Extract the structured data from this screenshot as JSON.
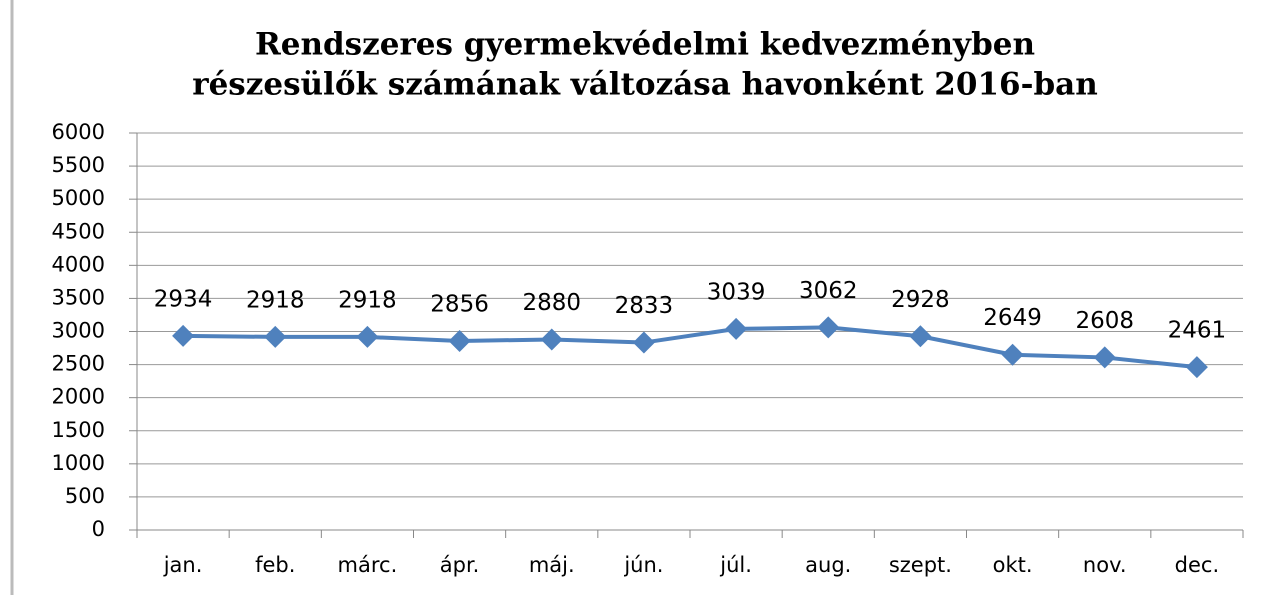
{
  "chart_data": {
    "type": "line",
    "title": [
      "Rendszeres gyermekvédelmi kedvezményben",
      "részesülők számának változása havonként 2016-ban"
    ],
    "categories": [
      "jan.",
      "feb.",
      "márc.",
      "ápr.",
      "máj.",
      "jún.",
      "júl.",
      "aug.",
      "szept.",
      "okt.",
      "nov.",
      "dec."
    ],
    "series": [
      {
        "color": "#4f81bd",
        "values": [
          2934,
          2918,
          2918,
          2856,
          2880,
          2833,
          3039,
          3062,
          2928,
          2649,
          2608,
          2461
        ]
      }
    ],
    "ylim": [
      0,
      6000
    ],
    "yticks": [
      0,
      500,
      1000,
      1500,
      2000,
      2500,
      3000,
      3500,
      4000,
      4500,
      5000,
      5500,
      6000
    ],
    "grid": true,
    "data_labels": true
  }
}
